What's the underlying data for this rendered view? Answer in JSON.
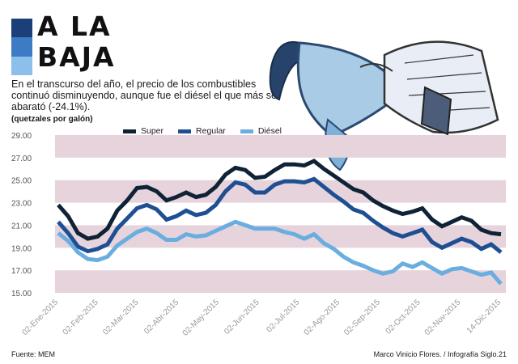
{
  "header": {
    "title_line1": "A LA",
    "title_line2": "BAJA",
    "subtitle": "En el transcurso del año, el precio de los combustibles continuó disminuyendo, aunque fue el diésel el que más se abarató (-24.1%).",
    "unit": "(quetzales por galón)"
  },
  "footer": {
    "source": "Fuente: MEM",
    "credit": "Marco Vinicio Flores. / Infografía Siglo.21"
  },
  "colors": {
    "super": "#0f2236",
    "regular": "#1f4f93",
    "diesel": "#6aaee0",
    "band": "#e6d3dc"
  },
  "chart_data": {
    "type": "line",
    "ylim": [
      15,
      29
    ],
    "yticks": [
      "29.00",
      "27.00",
      "25.00",
      "23.00",
      "21.00",
      "19.00",
      "17.00",
      "15.00"
    ],
    "xticks": [
      "02-Ene-2015",
      "02-Feb-2015",
      "02-Mar-2015",
      "02-Abr-2015",
      "02-May-2015",
      "02-Jun-2015",
      "02-Jul-2015",
      "02-Ago-2015",
      "02-Sep-2015",
      "02-Oct-2015",
      "02-Nov-2015",
      "14-Dic-2015"
    ],
    "series": [
      {
        "name": "Super",
        "values": [
          22.8,
          21.8,
          20.3,
          19.8,
          20.0,
          20.7,
          22.3,
          23.2,
          24.3,
          24.4,
          24.0,
          23.2,
          23.5,
          23.9,
          23.5,
          23.7,
          24.4,
          25.5,
          26.1,
          25.9,
          25.2,
          25.3,
          25.9,
          26.4,
          26.4,
          26.3,
          26.7,
          26.0,
          25.4,
          24.8,
          24.2,
          23.9,
          23.2,
          22.7,
          22.3,
          22.0,
          22.2,
          22.5,
          21.5,
          20.9,
          21.3,
          21.7,
          21.4,
          20.6,
          20.3,
          20.2
        ]
      },
      {
        "name": "Regular",
        "values": [
          21.3,
          20.3,
          19.1,
          18.7,
          18.9,
          19.3,
          20.7,
          21.6,
          22.5,
          22.8,
          22.4,
          21.5,
          21.8,
          22.3,
          21.9,
          22.1,
          22.8,
          24.0,
          24.8,
          24.6,
          23.9,
          23.9,
          24.6,
          24.9,
          24.9,
          24.8,
          25.1,
          24.4,
          23.7,
          23.1,
          22.4,
          22.1,
          21.4,
          20.8,
          20.3,
          20.0,
          20.3,
          20.6,
          19.5,
          19.0,
          19.4,
          19.8,
          19.5,
          18.9,
          19.3,
          18.6
        ]
      },
      {
        "name": "Diésel",
        "values": [
          20.3,
          19.6,
          18.6,
          18.0,
          17.9,
          18.2,
          19.2,
          19.8,
          20.4,
          20.7,
          20.3,
          19.7,
          19.7,
          20.2,
          20.0,
          20.1,
          20.5,
          20.9,
          21.3,
          21.0,
          20.7,
          20.7,
          20.7,
          20.4,
          20.2,
          19.8,
          20.2,
          19.4,
          18.9,
          18.2,
          17.7,
          17.4,
          17.0,
          16.7,
          16.9,
          17.6,
          17.3,
          17.7,
          17.2,
          16.7,
          17.1,
          17.2,
          16.9,
          16.6,
          16.8,
          15.8
        ]
      }
    ]
  }
}
